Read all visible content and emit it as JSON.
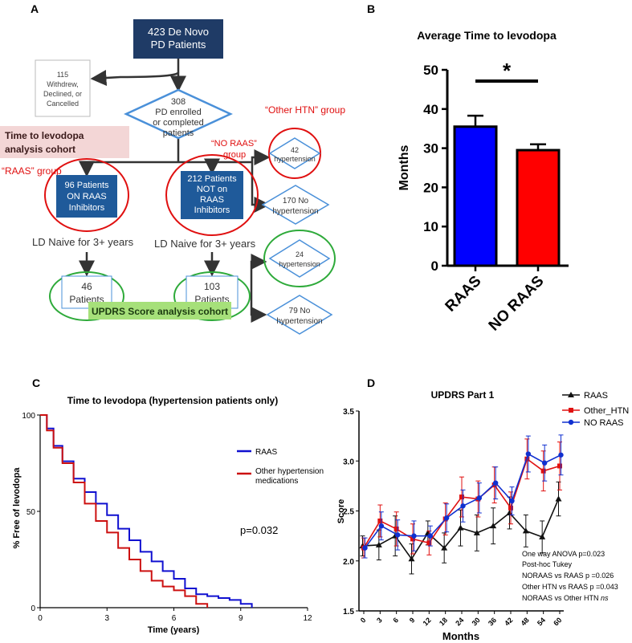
{
  "colors": {
    "navy": "#1f3b66",
    "blue": "#4a90d9",
    "red": "#e01010",
    "green": "#2eaa3a",
    "pink": "#f3d6d6",
    "lime": "#a6e07a",
    "bar_raas": "#0000ff",
    "bar_noraas": "#ff0000",
    "curve_raas": "#1010d0",
    "curve_other": "#cc1010",
    "dark": "#333333"
  },
  "panels": {
    "a": "A",
    "b": "B",
    "c": "C",
    "d": "D"
  },
  "flow": {
    "top": [
      "423 De Novo",
      "PD Patients"
    ],
    "withdrew": [
      "115",
      "Withdrew,",
      "Declined, or",
      "Cancelled"
    ],
    "enrolled": [
      "308",
      "PD enrolled",
      "or completed",
      "patients"
    ],
    "cohort_time": [
      "Time to levodopa",
      "analysis cohort"
    ],
    "raas_group": "“RAAS” group",
    "noraas_group": [
      "“NO RAAS”",
      "group"
    ],
    "other_group": "“Other HTN” group",
    "raas_box": [
      "96 Patients",
      "ON RAAS",
      "Inhibitors"
    ],
    "noraas_box": [
      "212 Patients",
      "NOT on",
      "RAAS",
      "Inhibitors"
    ],
    "hyp42": [
      "42",
      "hypertension"
    ],
    "nohyp170": [
      "170 No",
      "hypertension"
    ],
    "naive_left": "LD Naive for 3+ years",
    "naive_right": "LD Naive for 3+ years",
    "p46": [
      "46",
      "Patients"
    ],
    "p103": [
      "103",
      "Patients"
    ],
    "hyp24": [
      "24",
      "hypertension"
    ],
    "nohyp79": [
      "79 No",
      "hypertension"
    ],
    "cohort_updrs": "UPDRS Score analysis cohort"
  },
  "chart_data": [
    {
      "type": "bar",
      "title": "Average Time to levodopa",
      "ylabel": "Months",
      "xlabel": "",
      "categories": [
        "RAAS",
        "NO RAAS"
      ],
      "values": [
        35.5,
        29.5
      ],
      "errors": [
        2.8,
        1.5
      ],
      "ylim": [
        0,
        50
      ],
      "yticks": [
        0,
        10,
        20,
        30,
        40,
        50
      ],
      "significance": "*",
      "grid": false
    },
    {
      "type": "line",
      "title": "Time to levodopa (hypertension patients only)",
      "xlabel": "Time (years)",
      "ylabel": "% Free of levodopa",
      "xlim": [
        0,
        12
      ],
      "ylim": [
        0,
        100
      ],
      "xticks": [
        0,
        3,
        6,
        9,
        12
      ],
      "yticks": [
        0,
        50,
        100
      ],
      "legend_position": "top-right",
      "annotation": "p=0.032",
      "series": [
        {
          "name": "RAAS",
          "x": [
            0,
            0.3,
            0.6,
            1.0,
            1.5,
            2.0,
            2.5,
            3.0,
            3.5,
            4.0,
            4.5,
            5.0,
            5.5,
            6.0,
            6.5,
            7.0,
            7.5,
            8.0,
            8.5,
            9.0,
            9.5
          ],
          "y": [
            100,
            93,
            84,
            76,
            67,
            60,
            54,
            48,
            41,
            35,
            29,
            24,
            19,
            15,
            10,
            7,
            6,
            5,
            4,
            2,
            0
          ]
        },
        {
          "name": "Other hypertension medications",
          "x": [
            0,
            0.3,
            0.6,
            1.0,
            1.5,
            2.0,
            2.5,
            3.0,
            3.5,
            4.0,
            4.5,
            5.0,
            5.5,
            6.0,
            6.5,
            7.0,
            7.5
          ],
          "y": [
            100,
            92,
            83,
            75,
            65,
            54,
            45,
            39,
            31,
            25,
            19,
            14,
            11,
            9,
            6,
            2,
            0
          ]
        }
      ]
    },
    {
      "type": "line",
      "title": "UPDRS Part 1",
      "xlabel": "Months",
      "ylabel": "Score",
      "ylim": [
        1.5,
        3.5
      ],
      "yticks": [
        1.5,
        2.0,
        2.5,
        3.0,
        3.5
      ],
      "categories": [
        0,
        3,
        6,
        9,
        12,
        18,
        24,
        30,
        36,
        42,
        48,
        54,
        60
      ],
      "legend_position": "top-right",
      "series": [
        {
          "name": "RAAS",
          "values": [
            2.15,
            2.16,
            2.25,
            2.02,
            2.28,
            2.13,
            2.33,
            2.28,
            2.35,
            2.48,
            2.3,
            2.24,
            2.62
          ],
          "errors": [
            0.1,
            0.15,
            0.2,
            0.15,
            0.12,
            0.15,
            0.18,
            0.18,
            0.18,
            0.16,
            0.16,
            0.16,
            0.17
          ]
        },
        {
          "name": "Other_HTN",
          "values": [
            2.13,
            2.4,
            2.32,
            2.22,
            2.18,
            2.42,
            2.64,
            2.62,
            2.76,
            2.53,
            3.02,
            2.9,
            2.95
          ],
          "errors": [
            0.1,
            0.16,
            0.17,
            0.15,
            0.12,
            0.16,
            0.2,
            0.18,
            0.18,
            0.16,
            0.2,
            0.2,
            0.24
          ]
        },
        {
          "name": "NO RAAS",
          "values": [
            2.13,
            2.35,
            2.26,
            2.25,
            2.25,
            2.43,
            2.55,
            2.63,
            2.78,
            2.6,
            3.07,
            2.98,
            3.06
          ],
          "errors": [
            0.1,
            0.14,
            0.15,
            0.15,
            0.1,
            0.14,
            0.16,
            0.15,
            0.16,
            0.14,
            0.18,
            0.18,
            0.2
          ]
        }
      ],
      "stats": [
        "One way ANOVA p=0.023",
        "Post-hoc Tukey",
        "NORAAS vs RAAS p =0.026",
        "Other HTN vs RAAS p =0.043",
        "NORAAS vs Other HTN "
      ],
      "stats_ns": "ns"
    }
  ]
}
